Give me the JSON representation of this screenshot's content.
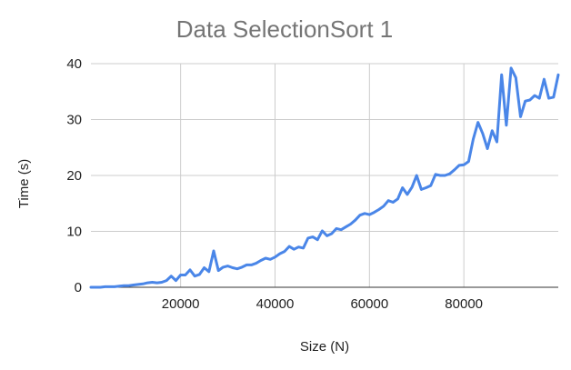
{
  "chart_data": {
    "type": "line",
    "title": "Data SelectionSort 1",
    "xlabel": "Size (N)",
    "ylabel": "Time (s)",
    "xlim": [
      1000,
      100000
    ],
    "ylim": [
      0,
      40
    ],
    "x_ticks": [
      20000,
      40000,
      60000,
      80000
    ],
    "y_ticks": [
      0,
      10,
      20,
      30,
      40
    ],
    "grid": true,
    "legend": "none",
    "colors": {
      "line": "#4a86e8"
    },
    "series": [
      {
        "x": [
          1000,
          2000,
          3000,
          4000,
          5000,
          6000,
          7000,
          8000,
          9000,
          10000,
          11000,
          12000,
          13000,
          14000,
          15000,
          16000,
          17000,
          18000,
          19000,
          20000,
          21000,
          22000,
          23000,
          24000,
          25000,
          26000,
          27000,
          28000,
          29000,
          30000,
          31000,
          32000,
          33000,
          34000,
          35000,
          36000,
          37000,
          38000,
          39000,
          40000,
          41000,
          42000,
          43000,
          44000,
          45000,
          46000,
          47000,
          48000,
          49000,
          50000,
          51000,
          52000,
          53000,
          54000,
          55000,
          56000,
          57000,
          58000,
          59000,
          60000,
          61000,
          62000,
          63000,
          64000,
          65000,
          66000,
          67000,
          68000,
          69000,
          70000,
          71000,
          72000,
          73000,
          74000,
          75000,
          76000,
          77000,
          78000,
          79000,
          80000,
          81000,
          82000,
          83000,
          84000,
          85000,
          86000,
          87000,
          88000,
          89000,
          90000,
          91000,
          92000,
          93000,
          94000,
          95000,
          96000,
          97000,
          98000,
          99000,
          100000
        ],
        "values": [
          0.0,
          0.0,
          0.0,
          0.1,
          0.1,
          0.1,
          0.2,
          0.3,
          0.3,
          0.4,
          0.5,
          0.6,
          0.8,
          0.9,
          0.8,
          0.9,
          1.2,
          2.0,
          1.2,
          2.2,
          2.2,
          3.1,
          2.0,
          2.3,
          3.5,
          2.8,
          6.5,
          3.0,
          3.6,
          3.8,
          3.5,
          3.3,
          3.6,
          4.0,
          4.0,
          4.3,
          4.8,
          5.2,
          5.0,
          5.4,
          6.0,
          6.4,
          7.3,
          6.8,
          7.2,
          7.0,
          8.8,
          9.0,
          8.5,
          10.1,
          9.2,
          9.6,
          10.5,
          10.3,
          10.8,
          11.3,
          12.0,
          12.9,
          13.2,
          13.0,
          13.4,
          13.9,
          14.5,
          15.5,
          15.2,
          15.8,
          17.8,
          16.6,
          17.9,
          20.0,
          17.5,
          17.8,
          18.2,
          20.2,
          20.0,
          20.0,
          20.3,
          21.0,
          21.8,
          21.9,
          22.5,
          26.5,
          29.5,
          27.5,
          24.8,
          28.0,
          26.0,
          38.0,
          29.0,
          39.2,
          37.5,
          30.5,
          33.3,
          33.5,
          34.3,
          33.8,
          37.2,
          33.8,
          34.0,
          38.0
        ]
      }
    ]
  }
}
